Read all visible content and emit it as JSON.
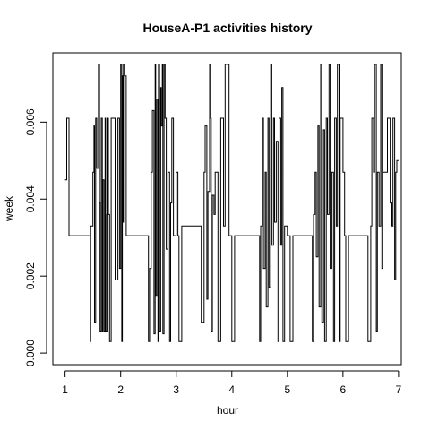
{
  "chart_data": {
    "type": "line",
    "line_style": "step",
    "title": "HouseA-P1 activities history",
    "xlabel": "hour",
    "ylabel": "week",
    "xlim": [
      0.78,
      7.05
    ],
    "ylim": [
      -0.0003,
      0.0078
    ],
    "xticks": [
      1,
      2,
      3,
      4,
      5,
      6,
      7
    ],
    "xtick_labels": [
      "1",
      "2",
      "3",
      "4",
      "5",
      "6",
      "7"
    ],
    "yticks": [
      0,
      0.002,
      0.004,
      0.006
    ],
    "ytick_labels": [
      "0.000",
      "0.002",
      "0.004",
      "0.006"
    ],
    "grid": false,
    "legend": "none",
    "colors": {
      "line": "#000000",
      "frame": "#000000",
      "background": "#ffffff"
    },
    "series": [
      {
        "x": [
          1.0,
          1.03,
          1.07,
          1.45,
          1.46,
          1.5,
          1.52,
          1.53,
          1.55,
          1.57,
          1.6,
          1.62,
          1.63,
          1.65,
          1.67,
          1.68,
          1.7,
          1.72,
          1.73,
          1.75,
          1.76,
          1.77,
          1.78,
          1.8,
          1.83,
          1.9,
          1.95,
          1.98,
          2.0,
          2.02,
          2.03,
          2.04,
          2.05,
          2.07,
          2.1,
          2.5,
          2.52,
          2.55,
          2.57,
          2.6,
          2.62,
          2.63,
          2.65,
          2.67,
          2.68,
          2.7,
          2.72,
          2.73,
          2.75,
          2.76,
          2.78,
          2.8,
          2.82,
          2.85,
          2.88,
          2.9,
          2.92,
          2.95,
          3.0,
          3.03,
          3.05,
          3.1,
          3.45,
          3.5,
          3.52,
          3.55,
          3.57,
          3.6,
          3.62,
          3.63,
          3.65,
          3.68,
          3.7,
          3.75,
          3.8,
          3.85,
          3.88,
          3.95,
          4.0,
          4.05,
          4.5,
          4.52,
          4.55,
          4.57,
          4.6,
          4.62,
          4.65,
          4.67,
          4.7,
          4.72,
          4.75,
          4.77,
          4.8,
          4.83,
          4.85,
          4.88,
          4.9,
          4.92,
          4.95,
          5.0,
          5.05,
          5.1,
          5.45,
          5.47,
          5.5,
          5.52,
          5.55,
          5.57,
          5.6,
          5.62,
          5.65,
          5.67,
          5.7,
          5.72,
          5.75,
          5.77,
          5.8,
          5.83,
          5.85,
          5.88,
          5.9,
          5.93,
          5.95,
          6.0,
          6.03,
          6.05,
          6.1,
          6.45,
          6.5,
          6.52,
          6.55,
          6.57,
          6.6,
          6.62,
          6.65,
          6.68,
          6.7,
          6.72,
          6.75,
          6.8,
          6.85,
          6.88,
          6.9,
          6.93,
          6.95,
          6.97,
          7.0
        ],
        "y": [
          0.0045,
          0.0061,
          0.00305,
          0.0003,
          0.0033,
          0.0047,
          0.0059,
          0.0008,
          0.0061,
          0.0048,
          0.0075,
          0.0039,
          0.00055,
          0.0061,
          0.00055,
          0.0045,
          0.00055,
          0.0061,
          0.00055,
          0.0036,
          0.00055,
          0.0061,
          0.0036,
          0.0003,
          0.0061,
          0.0019,
          0.0061,
          0.0022,
          0.0075,
          0.0003,
          0.0072,
          0.0034,
          0.0075,
          0.0072,
          0.00305,
          0.0003,
          0.0022,
          0.0047,
          0.0063,
          0.0005,
          0.0075,
          0.0015,
          0.0066,
          0.0003,
          0.0075,
          0.00055,
          0.0069,
          0.0059,
          0.0075,
          0.0005,
          0.0075,
          0.0061,
          0.0027,
          0.0047,
          0.0003,
          0.0039,
          0.0061,
          0.00305,
          0.0047,
          0.00305,
          0.0003,
          0.0033,
          0.0008,
          0.0047,
          0.0059,
          0.0014,
          0.0042,
          0.0075,
          0.0061,
          0.00055,
          0.0041,
          0.0036,
          0.0047,
          0.0003,
          0.0061,
          0.0033,
          0.0075,
          0.00305,
          0.0003,
          0.00305,
          0.0003,
          0.0033,
          0.0061,
          0.0022,
          0.0047,
          0.0012,
          0.0061,
          0.0017,
          0.0075,
          0.0028,
          0.0061,
          0.0034,
          0.0055,
          0.0003,
          0.0061,
          0.0028,
          0.0069,
          0.0003,
          0.0033,
          0.00305,
          0.0003,
          0.00305,
          0.0003,
          0.0036,
          0.0047,
          0.0025,
          0.0059,
          0.0012,
          0.0075,
          0.0008,
          0.0058,
          0.0003,
          0.0061,
          0.0036,
          0.0075,
          0.0022,
          0.0047,
          0.0003,
          0.0061,
          0.0033,
          0.0075,
          0.0003,
          0.0061,
          0.0047,
          0.00305,
          0.0003,
          0.00305,
          0.0003,
          0.0033,
          0.0061,
          0.0047,
          0.0075,
          0.00055,
          0.0047,
          0.0033,
          0.0075,
          0.0022,
          0.0047,
          0.0047,
          0.0061,
          0.0039,
          0.0033,
          0.0061,
          0.0019,
          0.0047,
          0.005,
          0.005
        ]
      }
    ]
  }
}
